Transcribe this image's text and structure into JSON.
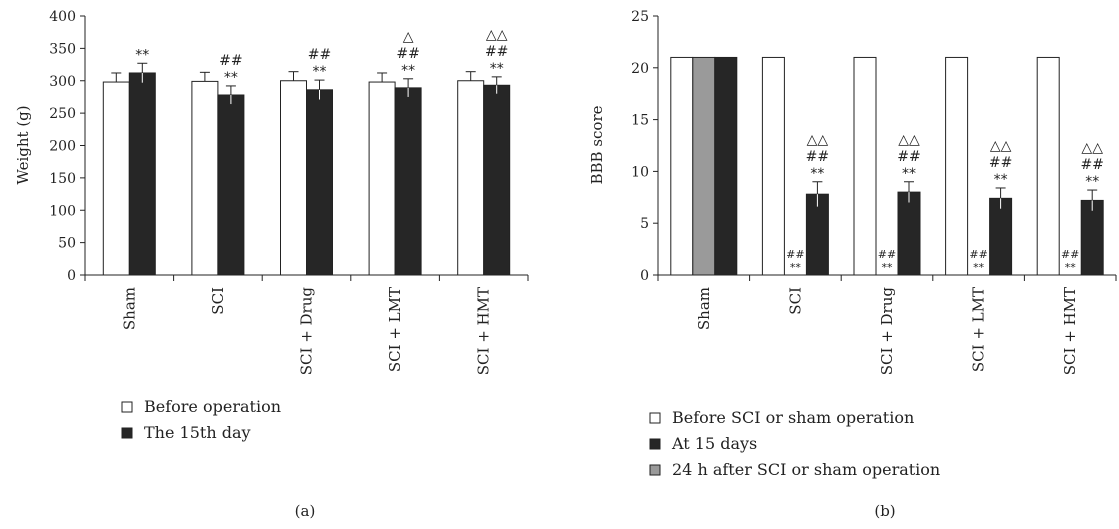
{
  "colors": {
    "white_bar": "#ffffff",
    "black_bar": "#262626",
    "gray_bar": "#9a9a9a",
    "stroke": "#222222"
  },
  "chart_data": [
    {
      "type": "bar",
      "panel_label": "(a)",
      "ylabel": "Weight (g)",
      "ylim": [
        0,
        400
      ],
      "yticks": [
        "0",
        "50",
        "100",
        "150",
        "200",
        "250",
        "300",
        "350",
        "400"
      ],
      "categories": [
        "Sham",
        "SCI",
        "SCI + Drug",
        "SCI + LMT",
        "SCI + HMT"
      ],
      "series": [
        {
          "name": "Before operation",
          "color": "#ffffff",
          "values": [
            298,
            299,
            300,
            298,
            300
          ],
          "errors": [
            14,
            14,
            14,
            14,
            14
          ]
        },
        {
          "name": "The 15th day",
          "color": "#262626",
          "values": [
            312,
            278,
            286,
            289,
            293
          ],
          "errors": [
            15,
            14,
            15,
            14,
            13
          ]
        }
      ],
      "annotations": [
        {
          "category": 0,
          "series": 1,
          "lines": [
            "**"
          ]
        },
        {
          "category": 1,
          "series": 1,
          "lines": [
            "##",
            "**"
          ]
        },
        {
          "category": 2,
          "series": 1,
          "lines": [
            "##",
            "**"
          ]
        },
        {
          "category": 3,
          "series": 1,
          "lines": [
            "△",
            "##",
            "**"
          ]
        },
        {
          "category": 4,
          "series": 1,
          "lines": [
            "△△",
            "##",
            "**"
          ]
        }
      ],
      "legend": [
        "Before operation",
        "The 15th day"
      ]
    },
    {
      "type": "bar",
      "panel_label": "(b)",
      "ylabel": "BBB score",
      "ylim": [
        0,
        25
      ],
      "yticks": [
        "0",
        "5",
        "10",
        "15",
        "20",
        "25"
      ],
      "categories": [
        "Sham",
        "SCI",
        "SCI + Drug",
        "SCI + LMT",
        "SCI + HMT"
      ],
      "series": [
        {
          "name": "Before SCI or sham operation",
          "color": "#ffffff",
          "values": [
            21,
            21,
            21,
            21,
            21
          ],
          "errors": [
            0,
            0,
            0,
            0,
            0
          ]
        },
        {
          "name": "24 h after SCI or sham operation",
          "color": "#9a9a9a",
          "values": [
            21,
            0,
            0,
            0,
            0
          ],
          "errors": [
            0,
            0,
            0,
            0,
            0
          ]
        },
        {
          "name": "At 15 days",
          "color": "#262626",
          "values": [
            21,
            7.8,
            8.0,
            7.4,
            7.2
          ],
          "errors": [
            0,
            1.2,
            1.0,
            1.0,
            1.0
          ]
        }
      ],
      "annotations": [
        {
          "category": 1,
          "series": 2,
          "lines": [
            "△△",
            "##",
            "**"
          ]
        },
        {
          "category": 2,
          "series": 2,
          "lines": [
            "△△",
            "##",
            "**"
          ]
        },
        {
          "category": 3,
          "series": 2,
          "lines": [
            "△△",
            "##",
            "**"
          ]
        },
        {
          "category": 4,
          "series": 2,
          "lines": [
            "△△",
            "##",
            "**"
          ]
        },
        {
          "category": 1,
          "series": 1,
          "small": true,
          "lines": [
            "##",
            "**"
          ]
        },
        {
          "category": 2,
          "series": 1,
          "small": true,
          "lines": [
            "##",
            "**"
          ]
        },
        {
          "category": 3,
          "series": 1,
          "small": true,
          "lines": [
            "##",
            "**"
          ]
        },
        {
          "category": 4,
          "series": 1,
          "small": true,
          "lines": [
            "##",
            "**"
          ]
        }
      ],
      "legend": [
        "Before SCI or sham operation",
        "At 15 days",
        "24 h after SCI or sham operation"
      ]
    }
  ]
}
